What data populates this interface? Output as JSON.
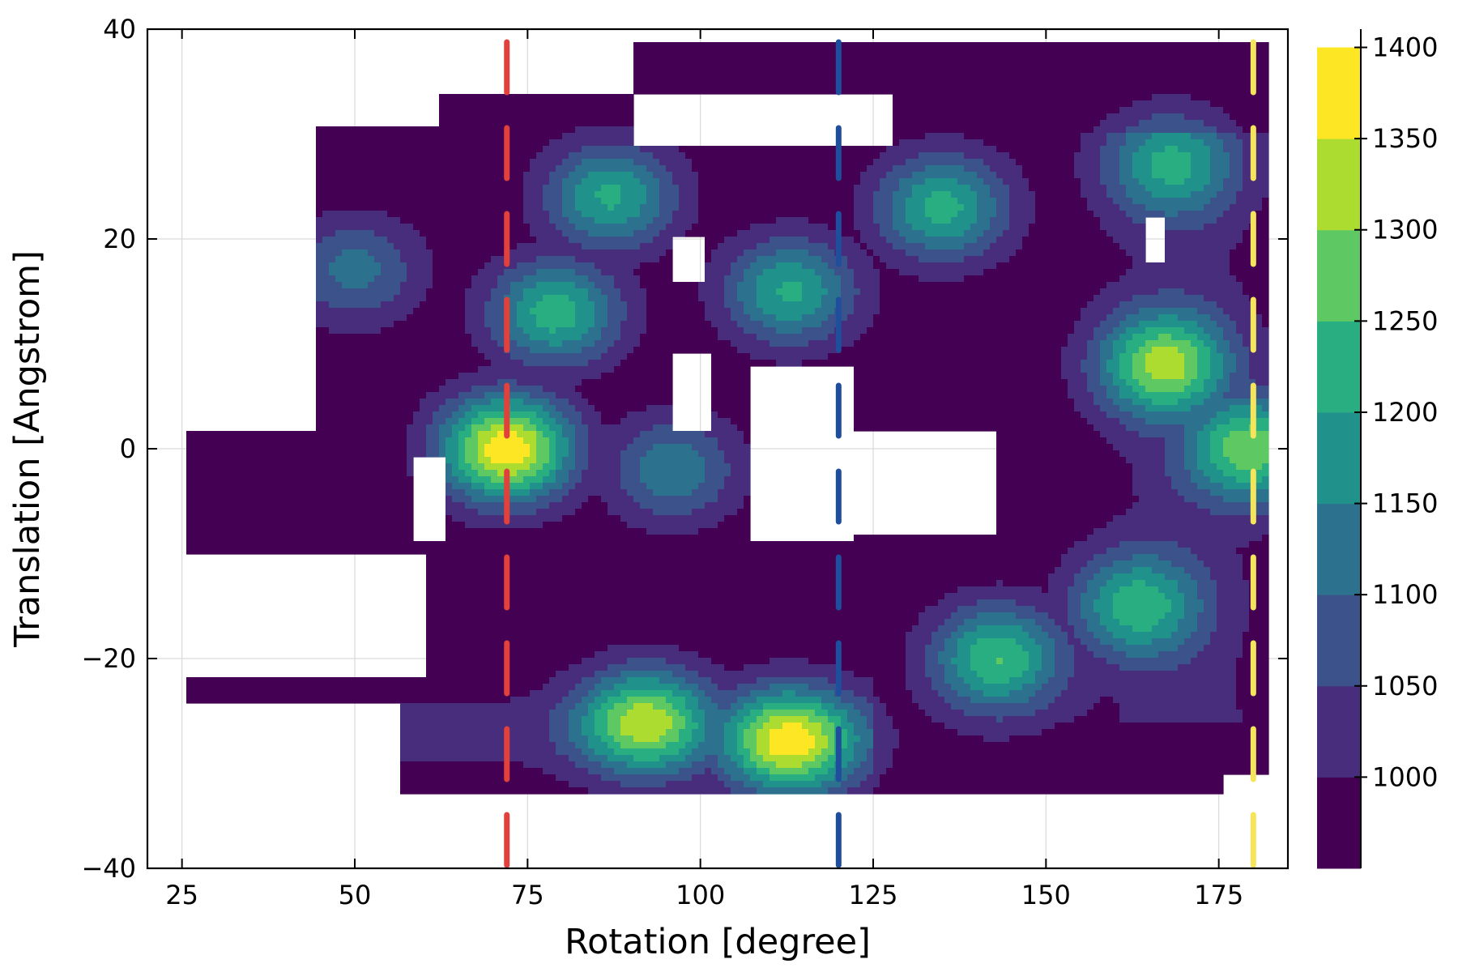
{
  "chart_data": {
    "type": "heatmap",
    "subtype": "filled-contour",
    "title": "",
    "xlabel": "Rotation [degree]",
    "ylabel": "Translation [Angstrom]",
    "xlim": [
      20,
      185
    ],
    "ylim": [
      -40,
      40
    ],
    "xticks": [
      25,
      50,
      75,
      100,
      125,
      150,
      175
    ],
    "yticks": [
      -40,
      -20,
      0,
      20,
      40
    ],
    "xtick_labels": [
      "25",
      "50",
      "75",
      "100",
      "125",
      "150",
      "175"
    ],
    "ytick_labels": [
      "−40",
      "−20",
      "0",
      "20",
      "40"
    ],
    "grid": true,
    "colorbar": {
      "levels": [
        950,
        1000,
        1050,
        1100,
        1150,
        1200,
        1250,
        1300,
        1350,
        1400
      ],
      "vmin": 950,
      "vmax": 1410,
      "tick_values": [
        1000,
        1050,
        1100,
        1150,
        1200,
        1250,
        1300,
        1350,
        1400
      ],
      "tick_labels": [
        "1000",
        "1050",
        "1100",
        "1150",
        "1200",
        "1250",
        "1300",
        "1350",
        "1400"
      ],
      "colors": [
        "#440154",
        "#472d7b",
        "#3b528b",
        "#2c728e",
        "#21918c",
        "#28ae80",
        "#5ec962",
        "#addc30",
        "#fde725"
      ]
    },
    "contour_peaks": [
      {
        "rotation": 72,
        "translation": 0,
        "value": 1390
      },
      {
        "rotation": 180,
        "translation": 0,
        "value": 1270
      },
      {
        "rotation": 113,
        "translation": -28,
        "value": 1340
      },
      {
        "rotation": 92,
        "translation": -26,
        "value": 1290
      },
      {
        "rotation": 143,
        "translation": -20,
        "value": 1250
      },
      {
        "rotation": 167,
        "translation": 8,
        "value": 1290
      },
      {
        "rotation": 79,
        "translation": 13,
        "value": 1230
      },
      {
        "rotation": 87,
        "translation": 24,
        "value": 1210
      },
      {
        "rotation": 113,
        "translation": 15,
        "value": 1210
      },
      {
        "rotation": 135,
        "translation": 23,
        "value": 1220
      },
      {
        "rotation": 168,
        "translation": 27,
        "value": 1180
      },
      {
        "rotation": 163,
        "translation": -15,
        "value": 1210
      },
      {
        "rotation": 96,
        "translation": -2,
        "value": 1140
      },
      {
        "rotation": 50,
        "translation": 17,
        "value": 1120
      }
    ],
    "vertical_lines": [
      {
        "x": 72,
        "color": "#e2403a",
        "style": "dashed"
      },
      {
        "x": 120,
        "color": "#1f4e9c",
        "style": "dashed"
      },
      {
        "x": 180,
        "color": "#f5e55c",
        "style": "dashed"
      }
    ]
  }
}
